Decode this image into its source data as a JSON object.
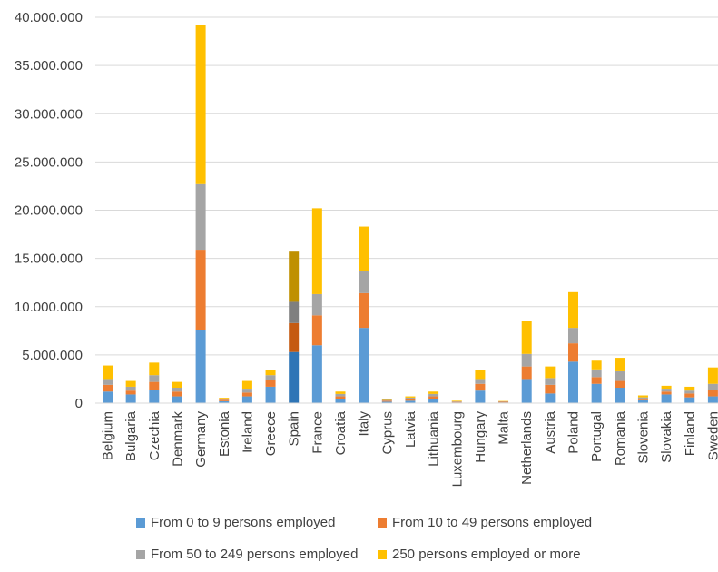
{
  "chart_data": {
    "type": "bar",
    "stacked": true,
    "title": "",
    "xlabel": "",
    "ylabel": "",
    "ylim": [
      0,
      40000000
    ],
    "yticks": [
      0,
      5000000,
      10000000,
      15000000,
      20000000,
      25000000,
      30000000,
      35000000,
      40000000
    ],
    "ytick_labels": [
      "0",
      "5.000.000",
      "10.000.000",
      "15.000.000",
      "20.000.000",
      "25.000.000",
      "30.000.000",
      "35.000.000",
      "40.000.000"
    ],
    "grid": true,
    "legend_position": "bottom",
    "categories": [
      "Belgium",
      "Bulgaria",
      "Czechia",
      "Denmark",
      "Germany",
      "Estonia",
      "Ireland",
      "Greece",
      "Spain",
      "France",
      "Croatia",
      "Italy",
      "Cyprus",
      "Latvia",
      "Lithuania",
      "Luxembourg",
      "Hungary",
      "Malta",
      "Netherlands",
      "Austria",
      "Poland",
      "Portugal",
      "Romania",
      "Slovenia",
      "Slovakia",
      "Finland",
      "Sweden"
    ],
    "series": [
      {
        "name": "From 0 to 9 persons employed",
        "color": "#5B9BD5",
        "values": [
          1200000,
          900000,
          1400000,
          700000,
          7600000,
          200000,
          700000,
          1700000,
          5300000,
          6000000,
          400000,
          7800000,
          150000,
          250000,
          400000,
          70000,
          1300000,
          70000,
          2500000,
          1000000,
          4300000,
          2000000,
          1600000,
          300000,
          900000,
          600000,
          700000
        ]
      },
      {
        "name": "From 10 to 49 persons employed",
        "color": "#ED7D31",
        "values": [
          700000,
          400000,
          800000,
          500000,
          8300000,
          150000,
          400000,
          700000,
          3000000,
          3100000,
          300000,
          3600000,
          100000,
          200000,
          300000,
          60000,
          700000,
          70000,
          1300000,
          900000,
          1900000,
          700000,
          700000,
          150000,
          300000,
          400000,
          700000
        ]
      },
      {
        "name": "From 50 to 249 persons employed",
        "color": "#A5A5A5",
        "values": [
          600000,
          400000,
          700000,
          400000,
          6800000,
          100000,
          400000,
          500000,
          2200000,
          2200000,
          250000,
          2300000,
          80000,
          120000,
          250000,
          50000,
          500000,
          40000,
          1300000,
          700000,
          1600000,
          800000,
          1000000,
          150000,
          300000,
          300000,
          600000
        ]
      },
      {
        "name": "250 persons employed or more",
        "color": "#FFC000",
        "values": [
          1400000,
          600000,
          1300000,
          600000,
          16500000,
          100000,
          800000,
          500000,
          5200000,
          8900000,
          250000,
          4600000,
          70000,
          130000,
          250000,
          70000,
          900000,
          40000,
          3400000,
          1200000,
          3700000,
          900000,
          1400000,
          200000,
          300000,
          400000,
          1700000
        ]
      }
    ]
  }
}
